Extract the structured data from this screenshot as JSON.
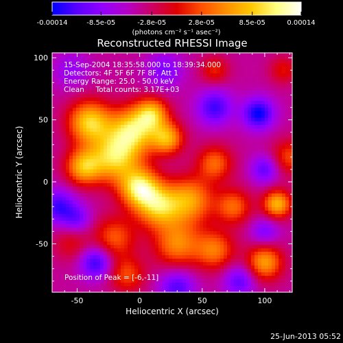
{
  "colorbar": {
    "tick_labels": [
      "-0.00014",
      "-8.5e-05",
      "-2.8e-05",
      "2.8e-05",
      "8.5e-05",
      "0.00014"
    ],
    "tick_values": [
      -0.00014,
      -8.5e-05,
      -2.8e-05,
      2.8e-05,
      8.5e-05,
      0.00014
    ],
    "range": [
      -0.00014,
      0.00014
    ],
    "units": "(photons cm⁻² s⁻¹ asec⁻²)",
    "colors": [
      "#0000ff",
      "#5a00ff",
      "#9200ff",
      "#b400c8",
      "#cc0064",
      "#e00000",
      "#ff5000",
      "#ff9000",
      "#ffc800",
      "#ffff80",
      "#ffffff"
    ]
  },
  "chart_data": {
    "type": "heatmap",
    "title": "Reconstructed RHESSI Image",
    "xlabel": "Heliocentric X (arcsec)",
    "ylabel": "Heliocentric Y (arcsec)",
    "xlim": [
      -70,
      122
    ],
    "ylim": [
      -89,
      104
    ],
    "xticks": [
      -50,
      0,
      50,
      100
    ],
    "yticks": [
      -50,
      0,
      50,
      100
    ],
    "xtick_labels": [
      "-50",
      "0",
      "50",
      "100"
    ],
    "ytick_labels": [
      "-50",
      "0",
      "50",
      "100"
    ],
    "value_range": [
      -0.00014,
      0.00014
    ],
    "peak_position": [
      -6,
      -11
    ],
    "annotations": {
      "time": "15-Sep-2004 18:35:58.000 to 18:39:34.000",
      "detectors": "Detectors: 4F 5F 6F 7F 8F, Att 1",
      "energy": "Energy Range: 25.0 - 50.0 keV",
      "clean": "Clean     Total counts: 3.17E+03",
      "peak": "Position of Peak = [-6,-11]"
    },
    "features": [
      {
        "x": -40,
        "y": 48,
        "amp": 1.0,
        "sigma": 12
      },
      {
        "x": -5,
        "y": 42,
        "amp": 1.0,
        "sigma": 13
      },
      {
        "x": 10,
        "y": 55,
        "amp": 0.8,
        "sigma": 9
      },
      {
        "x": 22,
        "y": 35,
        "amp": 0.85,
        "sigma": 9
      },
      {
        "x": -45,
        "y": 12,
        "amp": 0.85,
        "sigma": 10
      },
      {
        "x": -20,
        "y": 20,
        "amp": 1.0,
        "sigma": 14
      },
      {
        "x": 0,
        "y": -5,
        "amp": 1.1,
        "sigma": 11
      },
      {
        "x": 15,
        "y": -20,
        "amp": 0.9,
        "sigma": 12
      },
      {
        "x": 40,
        "y": -15,
        "amp": 0.8,
        "sigma": 13
      },
      {
        "x": 60,
        "y": 15,
        "amp": 0.6,
        "sigma": 10
      },
      {
        "x": 75,
        "y": -20,
        "amp": 0.6,
        "sigma": 10
      },
      {
        "x": 110,
        "y": -18,
        "amp": 0.9,
        "sigma": 8
      },
      {
        "x": 100,
        "y": -65,
        "amp": 0.8,
        "sigma": 10
      },
      {
        "x": 120,
        "y": 20,
        "amp": 0.5,
        "sigma": 10
      },
      {
        "x": -20,
        "y": -45,
        "amp": 0.55,
        "sigma": 12
      },
      {
        "x": 30,
        "y": -50,
        "amp": 0.7,
        "sigma": 13
      },
      {
        "x": 60,
        "y": -55,
        "amp": 0.65,
        "sigma": 11
      },
      {
        "x": -55,
        "y": -50,
        "amp": 0.3,
        "sigma": 10
      },
      {
        "x": -10,
        "y": -75,
        "amp": 0.5,
        "sigma": 10
      },
      {
        "x": 60,
        "y": 90,
        "amp": 0.4,
        "sigma": 8
      },
      {
        "x": 115,
        "y": 90,
        "amp": 0.35,
        "sigma": 8
      },
      {
        "x": 95,
        "y": 55,
        "amp": -0.75,
        "sigma": 9
      },
      {
        "x": 60,
        "y": 60,
        "amp": -0.6,
        "sigma": 10
      },
      {
        "x": 20,
        "y": 90,
        "amp": -0.4,
        "sigma": 10
      },
      {
        "x": -55,
        "y": 90,
        "amp": -0.3,
        "sigma": 10
      },
      {
        "x": -65,
        "y": -20,
        "amp": -0.6,
        "sigma": 10
      },
      {
        "x": -35,
        "y": -65,
        "amp": -0.65,
        "sigma": 9
      },
      {
        "x": 30,
        "y": -85,
        "amp": -0.55,
        "sigma": 10
      },
      {
        "x": 80,
        "y": -80,
        "amp": -0.5,
        "sigma": 9
      },
      {
        "x": 100,
        "y": -40,
        "amp": -0.4,
        "sigma": 8
      },
      {
        "x": 100,
        "y": 10,
        "amp": -0.5,
        "sigma": 8
      },
      {
        "x": -50,
        "y": -30,
        "amp": -0.4,
        "sigma": 8
      }
    ],
    "baseline": -0.25
  },
  "footer": {
    "timestamp": "25-Jun-2013 05:52"
  }
}
